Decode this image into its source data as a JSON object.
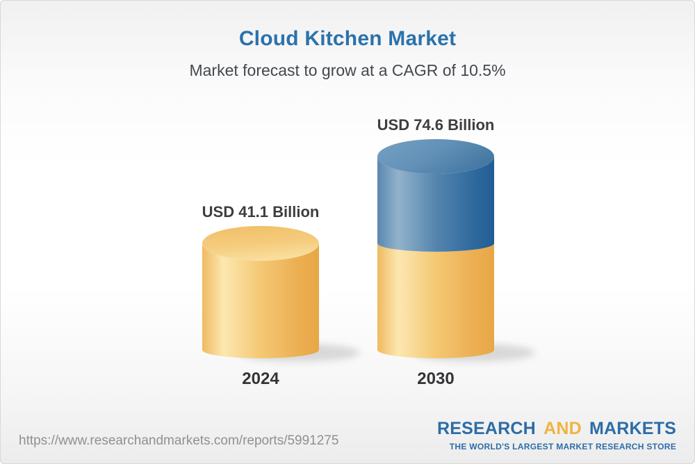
{
  "chart_data": {
    "type": "bar",
    "variant": "3d-cylinder-stacked",
    "title": "Cloud Kitchen Market",
    "subtitle": "Market forecast to grow at a CAGR of 10.5%",
    "unit": "USD Billion",
    "cagr_percent": 10.5,
    "categories": [
      "2024",
      "2030"
    ],
    "values": [
      41.1,
      74.6
    ],
    "value_labels": [
      "USD 41.1 Billion",
      "USD 74.6 Billion"
    ],
    "stacking_note": "2030 bar repeats the 2024 base value in gold with the forecast growth stacked in blue on top",
    "legend": "none",
    "axes": "none (value labels shown above bars, category years below)",
    "colors": {
      "base_segment_gold": "#F2C36C",
      "growth_segment_blue": "#4A7EAB",
      "title_blue": "#2B72AB",
      "subtitle_gray": "#43484D",
      "label_gray": "#3C3E40"
    }
  },
  "footer": {
    "source_url": "https://www.researchandmarkets.com/reports/5991275",
    "logo": {
      "word1": "RESEARCH",
      "word2": "AND",
      "word3": "MARKETS",
      "tagline": "THE WORLD'S LARGEST MARKET RESEARCH STORE"
    }
  }
}
